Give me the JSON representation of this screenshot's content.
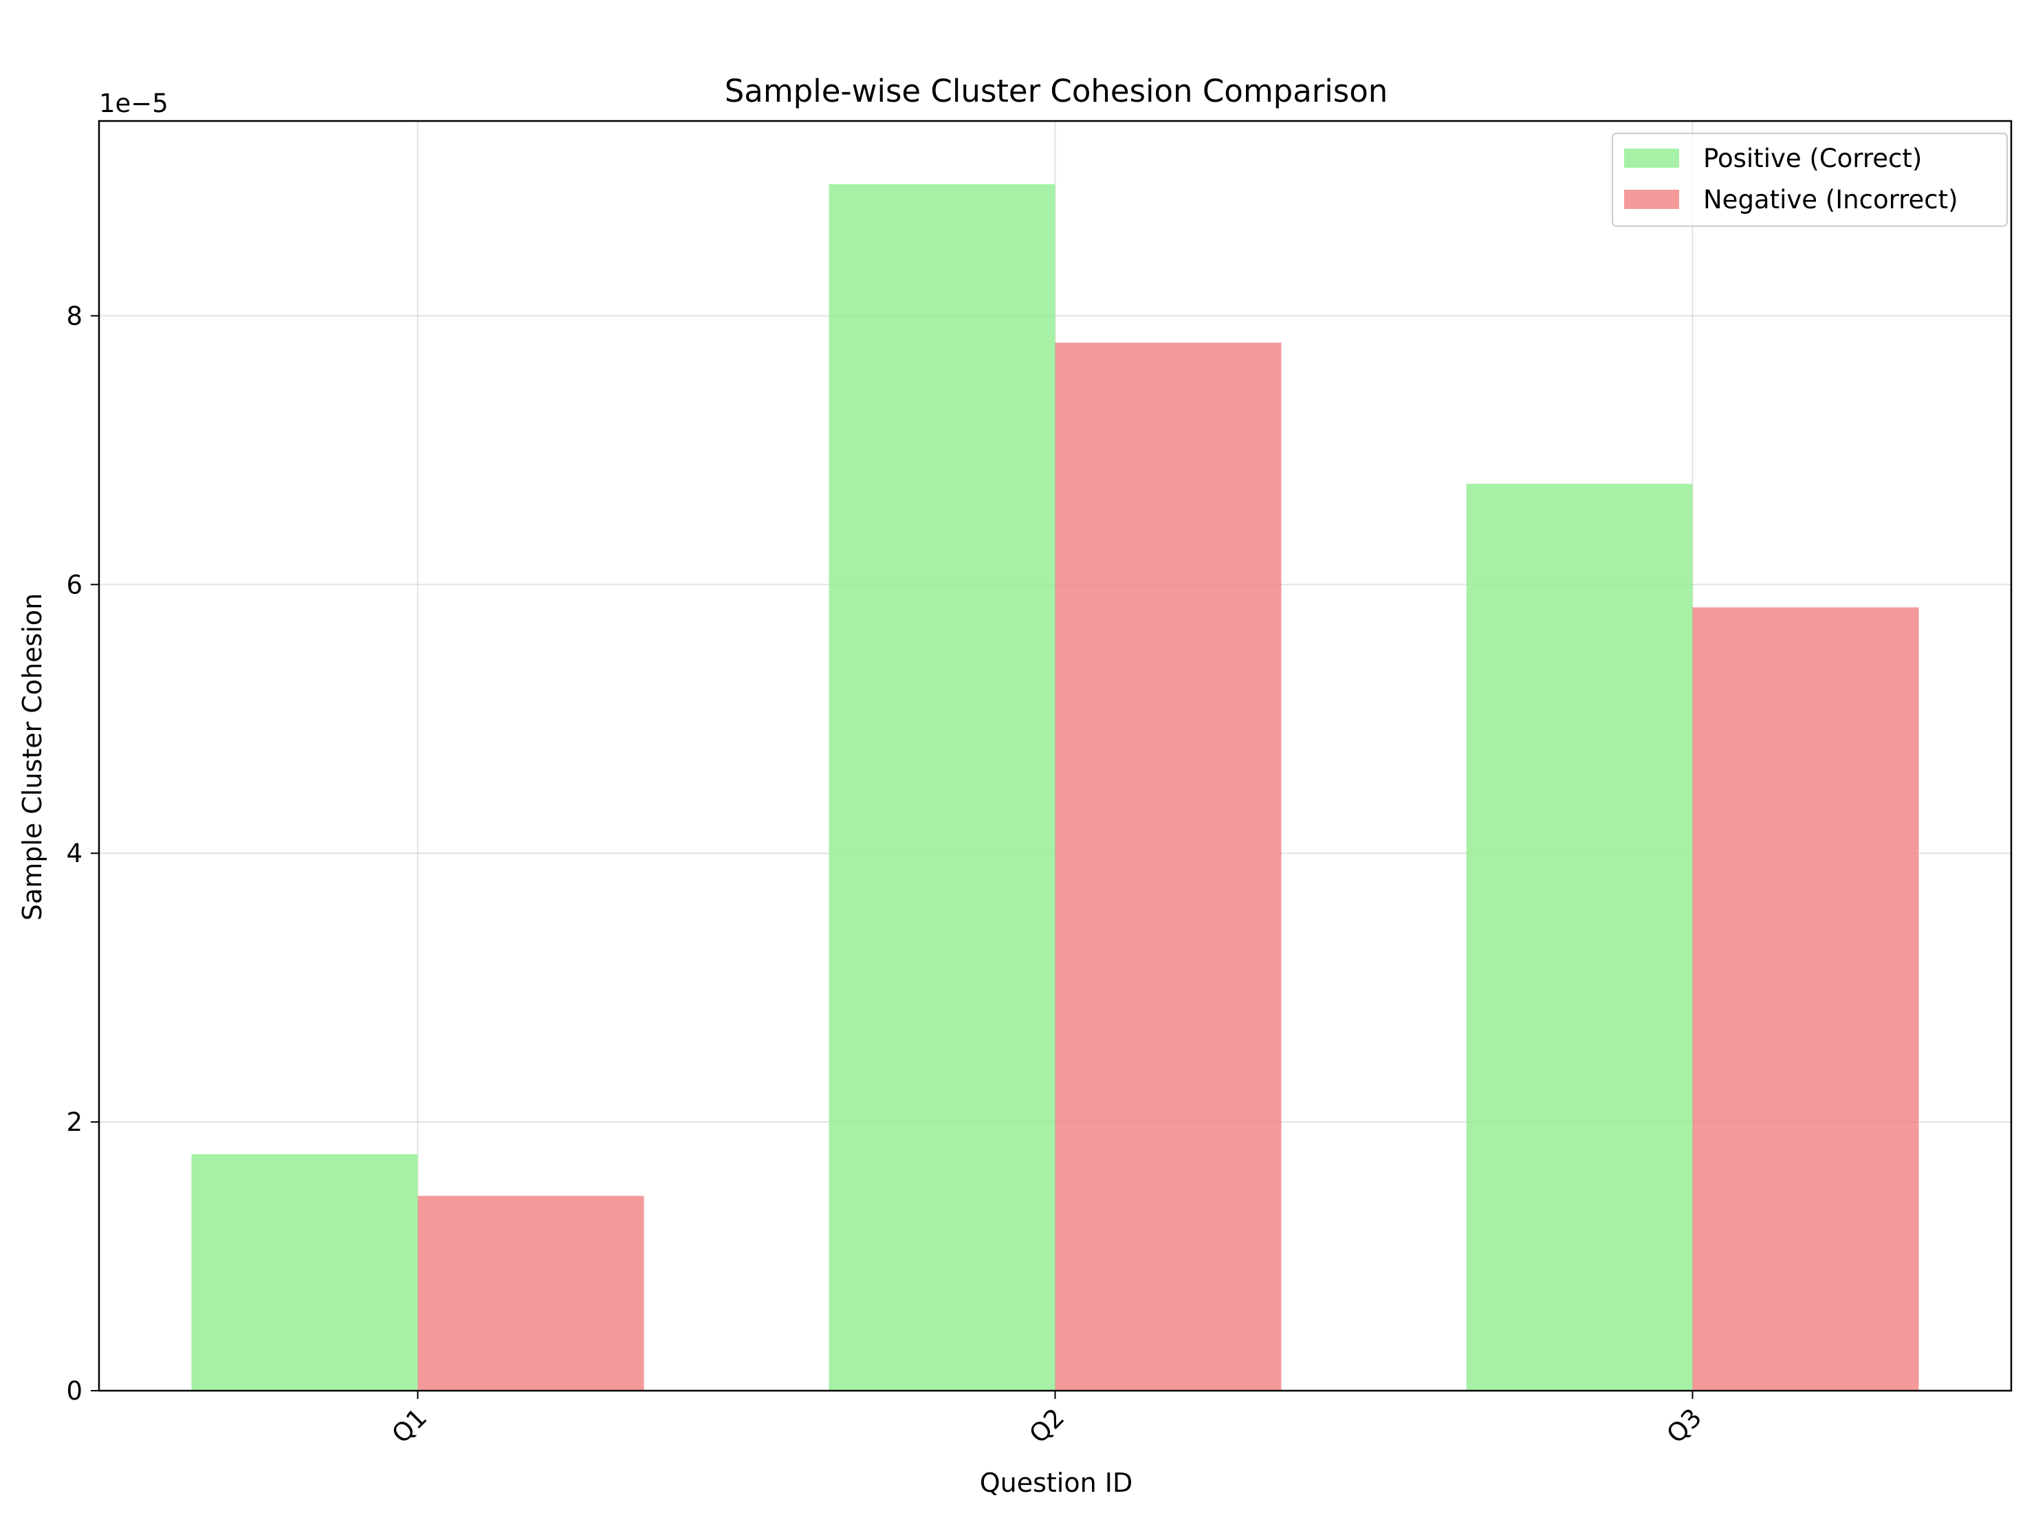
{
  "chart_data": {
    "type": "bar",
    "title": "Sample-wise Cluster Cohesion Comparison",
    "xlabel": "Question ID",
    "ylabel": "Sample Cluster Cohesion",
    "offset_label": "1e−5",
    "categories": [
      "Q1",
      "Q2",
      "Q3"
    ],
    "series": [
      {
        "name": "Positive (Correct)",
        "color": "#90ee90",
        "values": [
          1.76e-05,
          8.98e-05,
          6.75e-05
        ]
      },
      {
        "name": "Negative (Incorrect)",
        "color": "#f08080",
        "values": [
          1.45e-05,
          7.8e-05,
          5.83e-05
        ]
      }
    ],
    "ylim": [
      0,
      9.45e-05
    ],
    "yticks": [
      0,
      2e-05,
      4e-05,
      6e-05,
      8e-05
    ],
    "ytick_labels": [
      "0",
      "2",
      "4",
      "6",
      "8"
    ],
    "grid": true,
    "legend_position": "top-right"
  }
}
